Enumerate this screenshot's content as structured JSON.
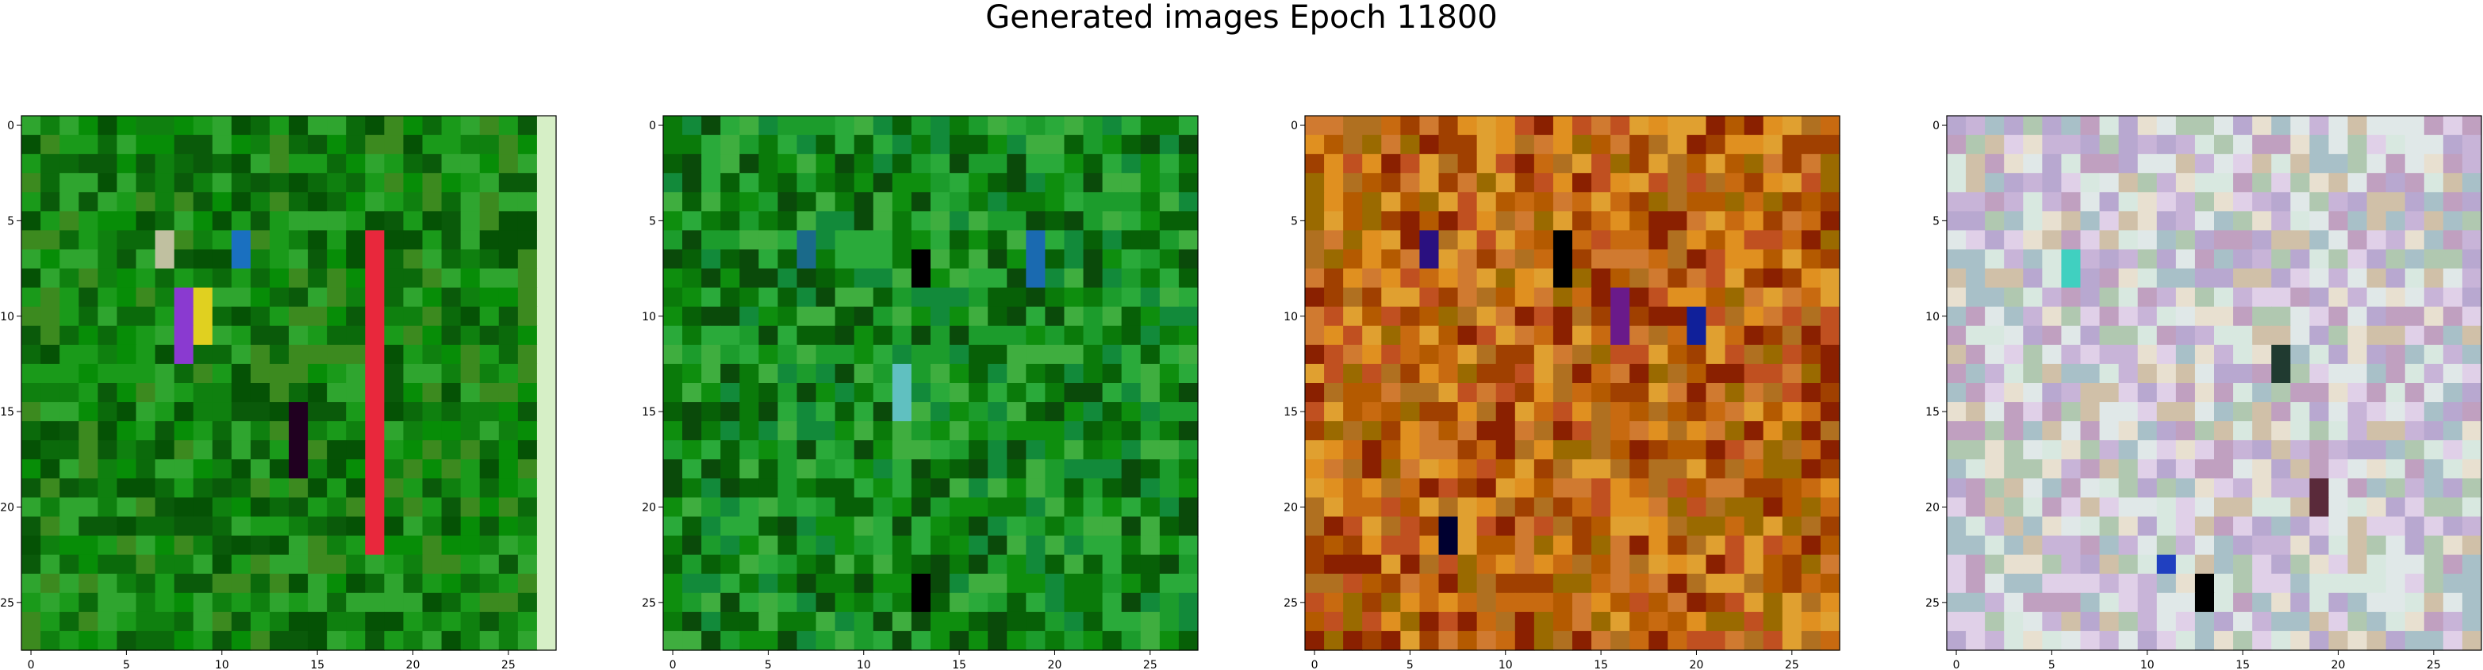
{
  "title": "Generated images Epoch 11800",
  "chart_data": {
    "type": "heatmap",
    "title": "Generated images Epoch 11800",
    "grid": false,
    "panels": [
      {
        "name": "",
        "rows": 28,
        "cols": 28,
        "xlim": [
          -0.5,
          27.5
        ],
        "ylim": [
          27.5,
          -0.5
        ],
        "xticks": [
          0,
          5,
          10,
          15,
          20,
          25
        ],
        "yticks": [
          0,
          5,
          10,
          15,
          20,
          25
        ],
        "palette": [
          "#0b6a0b",
          "#0f800f",
          "#078d07",
          "#1a9a1a",
          "#0a5a0a",
          "#2fa52f",
          "#055205",
          "#3c8a1f"
        ],
        "highlights": [
          {
            "col": 18,
            "rows": [
              6,
              22
            ],
            "color": "#e8283c"
          },
          {
            "col": 27,
            "rows": [
              0,
              27
            ],
            "color": "#d6efc6"
          },
          {
            "col": 8,
            "rows": [
              9,
              12
            ],
            "color": "#8a3ad0"
          },
          {
            "col": 9,
            "rows": [
              9,
              11
            ],
            "color": "#e0d020"
          },
          {
            "col": 11,
            "rows": [
              6,
              7
            ],
            "color": "#1a70c0"
          },
          {
            "col": 14,
            "rows": [
              15,
              18
            ],
            "color": "#200020"
          },
          {
            "col": 7,
            "rows": [
              6,
              7
            ],
            "color": "#c0c0a0"
          }
        ]
      },
      {
        "name": "",
        "rows": 28,
        "cols": 28,
        "xlim": [
          -0.5,
          27.5
        ],
        "ylim": [
          27.5,
          -0.5
        ],
        "xticks": [
          0,
          5,
          10,
          15,
          20,
          25
        ],
        "yticks": [
          0,
          5,
          10,
          15,
          20,
          25
        ],
        "palette": [
          "#0a7a0a",
          "#0e8e0e",
          "#1c9c2c",
          "#076007",
          "#2aaa3a",
          "#0a4a0a",
          "#128a3a",
          "#3fae3f"
        ],
        "highlights": [
          {
            "col": 7,
            "rows": [
              6,
              7
            ],
            "color": "#1a6a8a"
          },
          {
            "col": 13,
            "rows": [
              7,
              8
            ],
            "color": "#000000"
          },
          {
            "col": 19,
            "rows": [
              6,
              8
            ],
            "color": "#1a6ab0"
          },
          {
            "col": 12,
            "rows": [
              13,
              15
            ],
            "color": "#60c0c0"
          },
          {
            "col": 13,
            "rows": [
              24,
              25
            ],
            "color": "#000000"
          }
        ]
      },
      {
        "name": "",
        "rows": 28,
        "cols": 28,
        "xlim": [
          -0.5,
          27.5
        ],
        "ylim": [
          27.5,
          -0.5
        ],
        "xticks": [
          0,
          5,
          10,
          15,
          20,
          25
        ],
        "yticks": [
          0,
          5,
          10,
          15,
          20,
          25
        ],
        "palette": [
          "#c86a10",
          "#b45a00",
          "#e09020",
          "#a04000",
          "#d07a30",
          "#9a6a00",
          "#b07020",
          "#e0a030",
          "#8a2000",
          "#c05020"
        ],
        "highlights": [
          {
            "col": 13,
            "rows": [
              6,
              8
            ],
            "color": "#000000"
          },
          {
            "col": 6,
            "rows": [
              6,
              7
            ],
            "color": "#2a1080"
          },
          {
            "col": 16,
            "rows": [
              9,
              11
            ],
            "color": "#6a1a8a"
          },
          {
            "col": 20,
            "rows": [
              10,
              11
            ],
            "color": "#10209a"
          },
          {
            "col": 7,
            "rows": [
              21,
              22
            ],
            "color": "#000030"
          }
        ]
      },
      {
        "name": "",
        "rows": 28,
        "cols": 28,
        "xlim": [
          -0.5,
          27.5
        ],
        "ylim": [
          27.5,
          -0.5
        ],
        "xticks": [
          0,
          5,
          10,
          15,
          20,
          25
        ],
        "yticks": [
          0,
          5,
          10,
          15,
          20,
          25
        ],
        "palette": [
          "#c8b4d8",
          "#e0d0e8",
          "#b0c8b0",
          "#d8e8e0",
          "#c0a0c0",
          "#e8e0d0",
          "#a8c0c8",
          "#d0c0a8",
          "#b8a8d0",
          "#e0e8e8"
        ],
        "highlights": [
          {
            "col": 13,
            "rows": [
              24,
              25
            ],
            "color": "#000000"
          },
          {
            "col": 17,
            "rows": [
              12,
              13
            ],
            "color": "#203a30"
          },
          {
            "col": 11,
            "rows": [
              23,
              23
            ],
            "color": "#2040c0"
          },
          {
            "col": 6,
            "rows": [
              7,
              8
            ],
            "color": "#40d0c0"
          },
          {
            "col": 19,
            "rows": [
              19,
              20
            ],
            "color": "#5a2a3a"
          }
        ]
      }
    ]
  }
}
